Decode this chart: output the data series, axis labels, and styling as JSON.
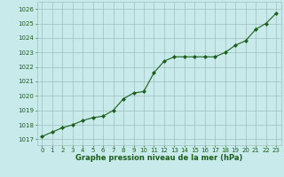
{
  "x": [
    0,
    1,
    2,
    3,
    4,
    5,
    6,
    7,
    8,
    9,
    10,
    11,
    12,
    13,
    14,
    15,
    16,
    17,
    18,
    19,
    20,
    21,
    22,
    23
  ],
  "y": [
    1017.2,
    1017.5,
    1017.8,
    1018.0,
    1018.3,
    1018.5,
    1018.6,
    1019.0,
    1019.8,
    1020.2,
    1020.3,
    1021.6,
    1022.4,
    1022.7,
    1022.7,
    1022.7,
    1022.7,
    1022.7,
    1023.0,
    1023.5,
    1023.8,
    1024.6,
    1025.0,
    1025.7
  ],
  "xlim_min": -0.5,
  "xlim_max": 23.5,
  "ylim_min": 1016.6,
  "ylim_max": 1026.5,
  "yticks": [
    1017,
    1018,
    1019,
    1020,
    1021,
    1022,
    1023,
    1024,
    1025,
    1026
  ],
  "xticks": [
    0,
    1,
    2,
    3,
    4,
    5,
    6,
    7,
    8,
    9,
    10,
    11,
    12,
    13,
    14,
    15,
    16,
    17,
    18,
    19,
    20,
    21,
    22,
    23
  ],
  "xlabel": "Graphe pression niveau de la mer (hPa)",
  "line_color": "#1a5e1a",
  "marker_color": "#1a5e1a",
  "bg_color": "#c8eaea",
  "grid_color": "#a0bebe",
  "xlabel_color": "#1a5e1a",
  "tick_color": "#1a5e1a",
  "tick_fontsize": 5.0,
  "xlabel_fontsize": 6.0
}
